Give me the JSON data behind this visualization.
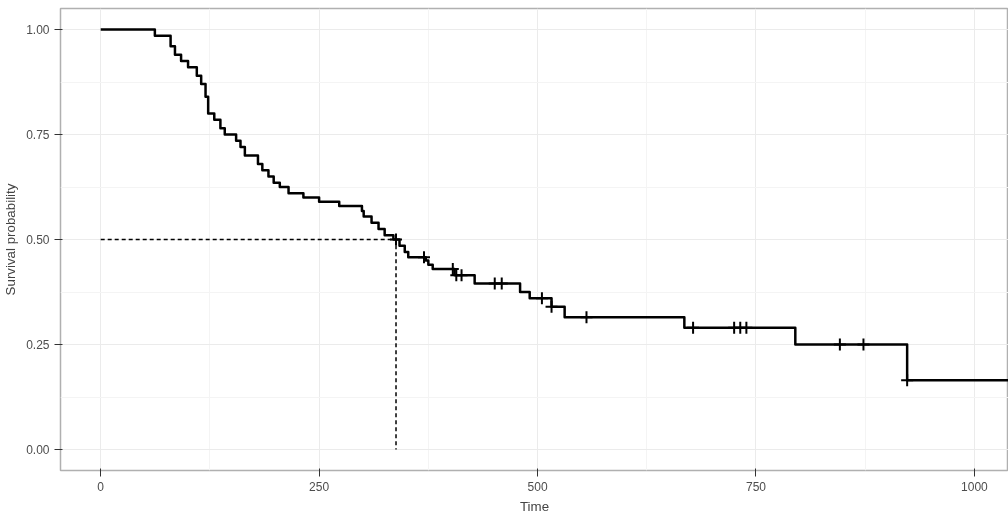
{
  "chart_data": {
    "type": "step",
    "xlabel": "Time",
    "ylabel": "Survival probability",
    "xlim": [
      -46,
      1039
    ],
    "ylim": [
      -0.05,
      1.05
    ],
    "xticks": [
      0,
      250,
      500,
      750,
      1000
    ],
    "yticks": [
      {
        "value": 0,
        "label": "0.00"
      },
      {
        "value": 0.25,
        "label": "0.25"
      },
      {
        "value": 0.5,
        "label": "0.50"
      },
      {
        "value": 0.75,
        "label": "0.75"
      },
      {
        "value": 1,
        "label": "1.00"
      }
    ],
    "grid": true,
    "series": [
      {
        "color": "#000000",
        "marker": "none",
        "line_style": "solid",
        "x": [
          0,
          62,
          80,
          85,
          92,
          100,
          110,
          115,
          120,
          123,
          130,
          137,
          142,
          155,
          160,
          165,
          180,
          185,
          192,
          198,
          205,
          215,
          232,
          250,
          273,
          299,
          301,
          310,
          318,
          325,
          335,
          342,
          348,
          352,
          372,
          375,
          380,
          405,
          428,
          480,
          491,
          516,
          531,
          668,
          795,
          923,
          1039
        ],
        "values": [
          1.0,
          0.985,
          0.96,
          0.94,
          0.925,
          0.91,
          0.89,
          0.87,
          0.84,
          0.8,
          0.785,
          0.765,
          0.75,
          0.735,
          0.72,
          0.7,
          0.68,
          0.665,
          0.65,
          0.635,
          0.625,
          0.61,
          0.6,
          0.59,
          0.58,
          0.568,
          0.555,
          0.54,
          0.525,
          0.51,
          0.5,
          0.485,
          0.47,
          0.458,
          0.45,
          0.44,
          0.43,
          0.415,
          0.395,
          0.375,
          0.36,
          0.34,
          0.315,
          0.29,
          0.25,
          0.165,
          0.165
        ]
      },
      {
        "type": "scatter",
        "color": "#000000",
        "marker": "cross",
        "x": [
          338,
          370,
          403,
          407,
          413,
          451,
          459,
          505,
          516,
          556,
          678,
          725,
          732,
          739,
          846,
          873,
          923
        ],
        "values": [
          0.5,
          0.458,
          0.43,
          0.415,
          0.415,
          0.395,
          0.395,
          0.36,
          0.34,
          0.315,
          0.29,
          0.29,
          0.29,
          0.29,
          0.25,
          0.25,
          0.165
        ]
      },
      {
        "type": "line",
        "color": "#000000",
        "marker": "none",
        "line_style": "dashed",
        "x": [
          0,
          338,
          338
        ],
        "values": [
          0.5,
          0.5,
          0
        ]
      }
    ]
  }
}
